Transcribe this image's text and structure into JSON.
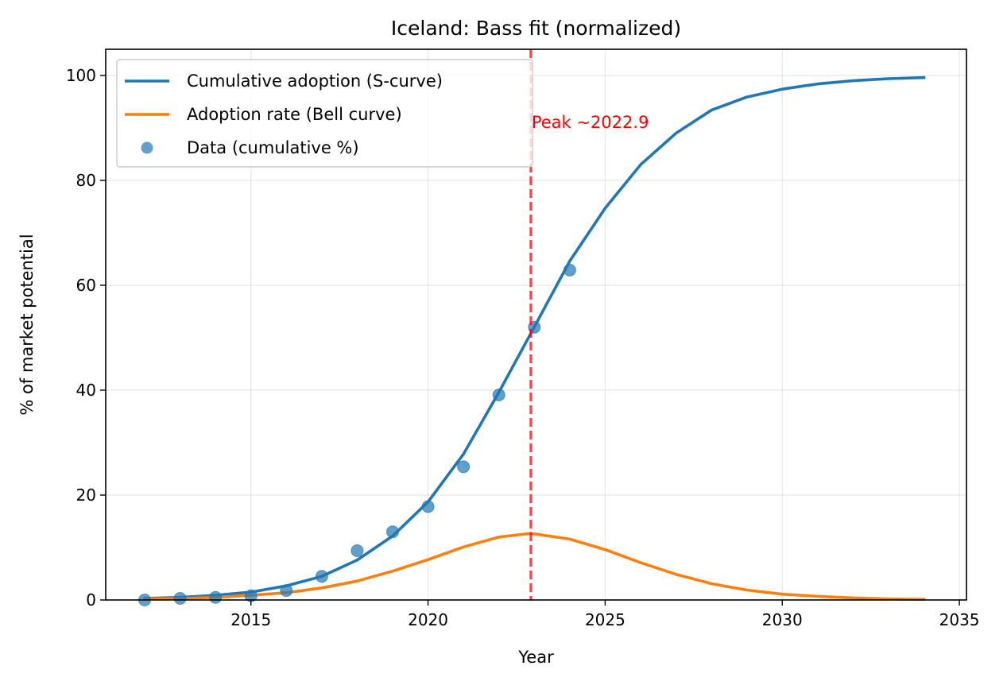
{
  "chart_data": {
    "type": "line",
    "title": "Iceland: Bass fit (normalized)",
    "xlabel": "Year",
    "ylabel": "% of market potential",
    "xlim": [
      2010.9,
      2035.2
    ],
    "ylim": [
      0,
      105
    ],
    "xticks": [
      2015,
      2020,
      2025,
      2030,
      2035
    ],
    "yticks": [
      0,
      20,
      40,
      60,
      80,
      100
    ],
    "grid": true,
    "legend_position": "upper-left",
    "series": [
      {
        "name": "Cumulative adoption (S-curve)",
        "kind": "line",
        "color": "#1f77b4",
        "x": [
          2012,
          2013,
          2014,
          2015,
          2016,
          2017,
          2018,
          2019,
          2020,
          2021,
          2022,
          2022.9,
          2024,
          2025,
          2026,
          2027,
          2028,
          2029,
          2030,
          2031,
          2032,
          2033,
          2034
        ],
        "values": [
          0.3,
          0.5,
          0.9,
          1.5,
          2.7,
          4.5,
          7.6,
          12.2,
          18.7,
          27.8,
          39.6,
          50.8,
          64.6,
          74.7,
          83.0,
          89.0,
          93.4,
          95.9,
          97.4,
          98.4,
          99.0,
          99.4,
          99.6
        ]
      },
      {
        "name": "Adoption rate (Bell curve)",
        "kind": "line",
        "color": "#ff7f0e",
        "x": [
          2012,
          2013,
          2014,
          2015,
          2016,
          2017,
          2018,
          2019,
          2020,
          2021,
          2022,
          2022.9,
          2024,
          2025,
          2026,
          2027,
          2028,
          2029,
          2030,
          2031,
          2032,
          2033,
          2034
        ],
        "values": [
          0.2,
          0.3,
          0.5,
          0.9,
          1.4,
          2.3,
          3.6,
          5.5,
          7.7,
          10.1,
          12.0,
          12.7,
          11.6,
          9.6,
          7.1,
          4.9,
          3.1,
          1.9,
          1.1,
          0.7,
          0.4,
          0.2,
          0.1
        ]
      },
      {
        "name": "Data (cumulative %)",
        "kind": "scatter",
        "color": "#1f77b4",
        "x": [
          2012,
          2013,
          2014,
          2015,
          2016,
          2017,
          2018,
          2019,
          2020,
          2021,
          2022,
          2023,
          2024
        ],
        "values": [
          0.0,
          0.3,
          0.5,
          0.8,
          1.8,
          4.5,
          9.4,
          13.0,
          17.8,
          25.4,
          39.1,
          52.0,
          62.9
        ]
      }
    ],
    "annotations": [
      {
        "type": "vline",
        "x": 2022.9,
        "color": "#ff0000",
        "style": "dashed",
        "label": "Peak ~2022.9"
      }
    ]
  }
}
